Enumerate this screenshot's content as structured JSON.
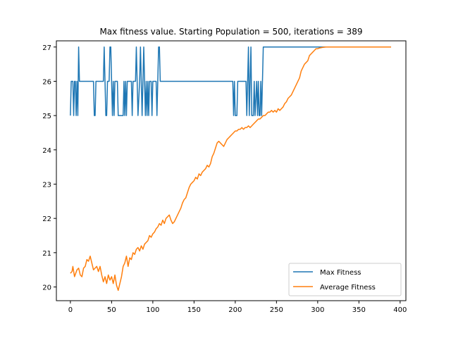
{
  "chart_data": {
    "type": "line",
    "title": "Max fitness value. Starting Population = 500, iterations = 389",
    "xlabel": "",
    "ylabel": "",
    "xlim": [
      -17,
      407
    ],
    "ylim": [
      19.6,
      27.18
    ],
    "xticks": [
      0,
      50,
      100,
      150,
      200,
      250,
      300,
      350,
      400
    ],
    "yticks": [
      20,
      21,
      22,
      23,
      24,
      25,
      26,
      27
    ],
    "grid": false,
    "legend_position": "lower-right",
    "series": [
      {
        "name": "Max Fitness",
        "color": "#1f77b4",
        "points": [
          [
            0,
            25
          ],
          [
            1,
            26
          ],
          [
            3,
            26
          ],
          [
            4,
            25
          ],
          [
            5,
            26
          ],
          [
            6,
            26
          ],
          [
            7,
            25
          ],
          [
            8,
            26
          ],
          [
            9,
            25
          ],
          [
            10,
            27
          ],
          [
            11,
            26
          ],
          [
            12,
            26
          ],
          [
            14,
            26
          ],
          [
            20,
            26
          ],
          [
            25,
            26
          ],
          [
            28,
            26
          ],
          [
            29,
            25
          ],
          [
            30,
            25
          ],
          [
            31,
            26
          ],
          [
            40,
            26
          ],
          [
            41,
            27
          ],
          [
            42,
            26
          ],
          [
            43,
            25
          ],
          [
            44,
            25
          ],
          [
            45,
            26
          ],
          [
            47,
            26
          ],
          [
            48,
            27
          ],
          [
            49,
            27
          ],
          [
            50,
            26
          ],
          [
            51,
            25
          ],
          [
            52,
            26
          ],
          [
            53,
            25
          ],
          [
            54,
            26
          ],
          [
            56,
            26
          ],
          [
            57,
            26
          ],
          [
            58,
            25
          ],
          [
            64,
            25
          ],
          [
            65,
            26
          ],
          [
            66,
            25
          ],
          [
            67,
            26
          ],
          [
            68,
            25
          ],
          [
            69,
            26
          ],
          [
            74,
            26
          ],
          [
            75,
            25
          ],
          [
            76,
            26
          ],
          [
            79,
            26
          ],
          [
            80,
            27
          ],
          [
            81,
            26
          ],
          [
            82,
            25
          ],
          [
            84,
            26
          ],
          [
            85,
            27
          ],
          [
            86,
            26
          ],
          [
            87,
            25
          ],
          [
            88,
            26
          ],
          [
            89,
            27
          ],
          [
            90,
            26
          ],
          [
            91,
            25
          ],
          [
            92,
            26
          ],
          [
            93,
            25
          ],
          [
            94,
            26
          ],
          [
            95,
            25
          ],
          [
            96,
            26
          ],
          [
            98,
            26
          ],
          [
            99,
            25
          ],
          [
            100,
            26
          ],
          [
            104,
            26
          ],
          [
            105,
            25
          ],
          [
            106,
            26
          ],
          [
            107,
            27
          ],
          [
            108,
            27
          ],
          [
            109,
            26
          ],
          [
            120,
            26
          ],
          [
            150,
            26
          ],
          [
            180,
            26
          ],
          [
            197,
            26
          ],
          [
            198,
            25
          ],
          [
            199,
            26
          ],
          [
            200,
            25
          ],
          [
            202,
            25
          ],
          [
            203,
            26
          ],
          [
            210,
            26
          ],
          [
            213,
            26
          ],
          [
            214,
            25
          ],
          [
            215,
            26
          ],
          [
            216,
            27
          ],
          [
            217,
            25
          ],
          [
            218,
            26
          ],
          [
            219,
            27
          ],
          [
            220,
            25
          ],
          [
            222,
            25
          ],
          [
            223,
            26
          ],
          [
            224,
            25
          ],
          [
            226,
            26
          ],
          [
            227,
            25
          ],
          [
            228,
            26
          ],
          [
            229,
            25
          ],
          [
            230,
            25
          ],
          [
            231,
            26
          ],
          [
            232,
            25
          ],
          [
            233,
            26
          ],
          [
            234,
            27
          ],
          [
            260,
            27
          ],
          [
            300,
            27
          ],
          [
            340,
            27
          ],
          [
            389,
            27
          ]
        ]
      },
      {
        "name": "Average Fitness",
        "color": "#ff7f0e",
        "points": [
          [
            0,
            20.4
          ],
          [
            2,
            20.45
          ],
          [
            3,
            20.6
          ],
          [
            5,
            20.3
          ],
          [
            8,
            20.5
          ],
          [
            10,
            20.55
          ],
          [
            12,
            20.35
          ],
          [
            14,
            20.3
          ],
          [
            16,
            20.55
          ],
          [
            18,
            20.6
          ],
          [
            20,
            20.8
          ],
          [
            22,
            20.75
          ],
          [
            24,
            20.9
          ],
          [
            26,
            20.7
          ],
          [
            28,
            20.5
          ],
          [
            30,
            20.55
          ],
          [
            32,
            20.6
          ],
          [
            34,
            20.45
          ],
          [
            36,
            20.6
          ],
          [
            38,
            20.35
          ],
          [
            40,
            20.15
          ],
          [
            42,
            20.3
          ],
          [
            44,
            20.1
          ],
          [
            46,
            20.35
          ],
          [
            48,
            20.2
          ],
          [
            50,
            20.3
          ],
          [
            52,
            20.1
          ],
          [
            54,
            20.35
          ],
          [
            56,
            20.05
          ],
          [
            58,
            19.9
          ],
          [
            60,
            20.1
          ],
          [
            62,
            20.3
          ],
          [
            64,
            20.6
          ],
          [
            66,
            20.7
          ],
          [
            68,
            20.9
          ],
          [
            70,
            20.6
          ],
          [
            72,
            20.85
          ],
          [
            74,
            20.8
          ],
          [
            76,
            21.0
          ],
          [
            78,
            20.95
          ],
          [
            80,
            21.1
          ],
          [
            82,
            21.15
          ],
          [
            84,
            21.05
          ],
          [
            86,
            21.2
          ],
          [
            88,
            21.1
          ],
          [
            90,
            21.25
          ],
          [
            92,
            21.3
          ],
          [
            94,
            21.35
          ],
          [
            96,
            21.5
          ],
          [
            98,
            21.45
          ],
          [
            100,
            21.55
          ],
          [
            102,
            21.6
          ],
          [
            104,
            21.7
          ],
          [
            106,
            21.75
          ],
          [
            108,
            21.85
          ],
          [
            110,
            21.8
          ],
          [
            112,
            21.95
          ],
          [
            114,
            21.85
          ],
          [
            116,
            22.0
          ],
          [
            118,
            22.05
          ],
          [
            120,
            22.1
          ],
          [
            122,
            21.95
          ],
          [
            124,
            21.85
          ],
          [
            126,
            21.9
          ],
          [
            128,
            22.0
          ],
          [
            130,
            22.1
          ],
          [
            132,
            22.2
          ],
          [
            134,
            22.3
          ],
          [
            136,
            22.45
          ],
          [
            138,
            22.55
          ],
          [
            140,
            22.6
          ],
          [
            142,
            22.75
          ],
          [
            144,
            22.9
          ],
          [
            146,
            23.0
          ],
          [
            148,
            23.05
          ],
          [
            150,
            23.1
          ],
          [
            152,
            23.2
          ],
          [
            154,
            23.15
          ],
          [
            156,
            23.3
          ],
          [
            158,
            23.25
          ],
          [
            160,
            23.35
          ],
          [
            162,
            23.4
          ],
          [
            164,
            23.45
          ],
          [
            166,
            23.55
          ],
          [
            168,
            23.5
          ],
          [
            170,
            23.6
          ],
          [
            172,
            23.8
          ],
          [
            174,
            23.9
          ],
          [
            176,
            24.05
          ],
          [
            178,
            24.2
          ],
          [
            180,
            24.25
          ],
          [
            182,
            24.2
          ],
          [
            184,
            24.15
          ],
          [
            186,
            24.1
          ],
          [
            188,
            24.2
          ],
          [
            190,
            24.3
          ],
          [
            192,
            24.35
          ],
          [
            194,
            24.4
          ],
          [
            196,
            24.45
          ],
          [
            198,
            24.5
          ],
          [
            200,
            24.55
          ],
          [
            202,
            24.55
          ],
          [
            204,
            24.6
          ],
          [
            206,
            24.6
          ],
          [
            208,
            24.65
          ],
          [
            210,
            24.6
          ],
          [
            212,
            24.65
          ],
          [
            214,
            24.65
          ],
          [
            216,
            24.7
          ],
          [
            218,
            24.65
          ],
          [
            220,
            24.7
          ],
          [
            222,
            24.75
          ],
          [
            224,
            24.8
          ],
          [
            226,
            24.85
          ],
          [
            228,
            24.9
          ],
          [
            230,
            24.9
          ],
          [
            232,
            24.95
          ],
          [
            234,
            25.0
          ],
          [
            236,
            25.0
          ],
          [
            238,
            25.05
          ],
          [
            240,
            25.1
          ],
          [
            242,
            25.1
          ],
          [
            244,
            25.15
          ],
          [
            246,
            25.1
          ],
          [
            248,
            25.15
          ],
          [
            250,
            25.1
          ],
          [
            252,
            25.2
          ],
          [
            254,
            25.15
          ],
          [
            256,
            25.2
          ],
          [
            258,
            25.25
          ],
          [
            260,
            25.35
          ],
          [
            262,
            25.4
          ],
          [
            264,
            25.5
          ],
          [
            266,
            25.55
          ],
          [
            268,
            25.6
          ],
          [
            270,
            25.7
          ],
          [
            272,
            25.8
          ],
          [
            274,
            25.9
          ],
          [
            276,
            26.0
          ],
          [
            278,
            26.1
          ],
          [
            280,
            26.3
          ],
          [
            282,
            26.4
          ],
          [
            284,
            26.5
          ],
          [
            286,
            26.55
          ],
          [
            288,
            26.6
          ],
          [
            290,
            26.75
          ],
          [
            292,
            26.8
          ],
          [
            294,
            26.85
          ],
          [
            296,
            26.9
          ],
          [
            298,
            26.95
          ],
          [
            300,
            26.95
          ],
          [
            302,
            26.97
          ],
          [
            304,
            26.98
          ],
          [
            306,
            26.99
          ],
          [
            310,
            27.0
          ],
          [
            320,
            27.0
          ],
          [
            340,
            27.0
          ],
          [
            360,
            27.0
          ],
          [
            389,
            27.0
          ]
        ]
      }
    ]
  }
}
